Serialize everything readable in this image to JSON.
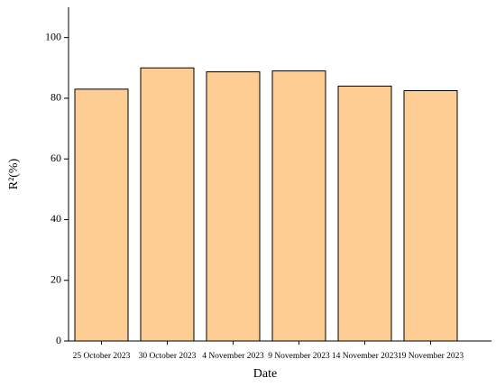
{
  "chart_data": {
    "type": "bar",
    "x_label": "Date",
    "y_label": "R²(%)",
    "categories": [
      "25 October 2023",
      "30 October 2023",
      "4 November 2023",
      "9 November 2023",
      "14 November 2023",
      "19 November 2023"
    ],
    "values": [
      83,
      90,
      88.7,
      89,
      84,
      82.5
    ],
    "color": "#fdcd93",
    "ylim": [
      0,
      110
    ],
    "yticks": [
      0,
      20,
      40,
      60,
      80,
      100
    ],
    "grid": false
  }
}
